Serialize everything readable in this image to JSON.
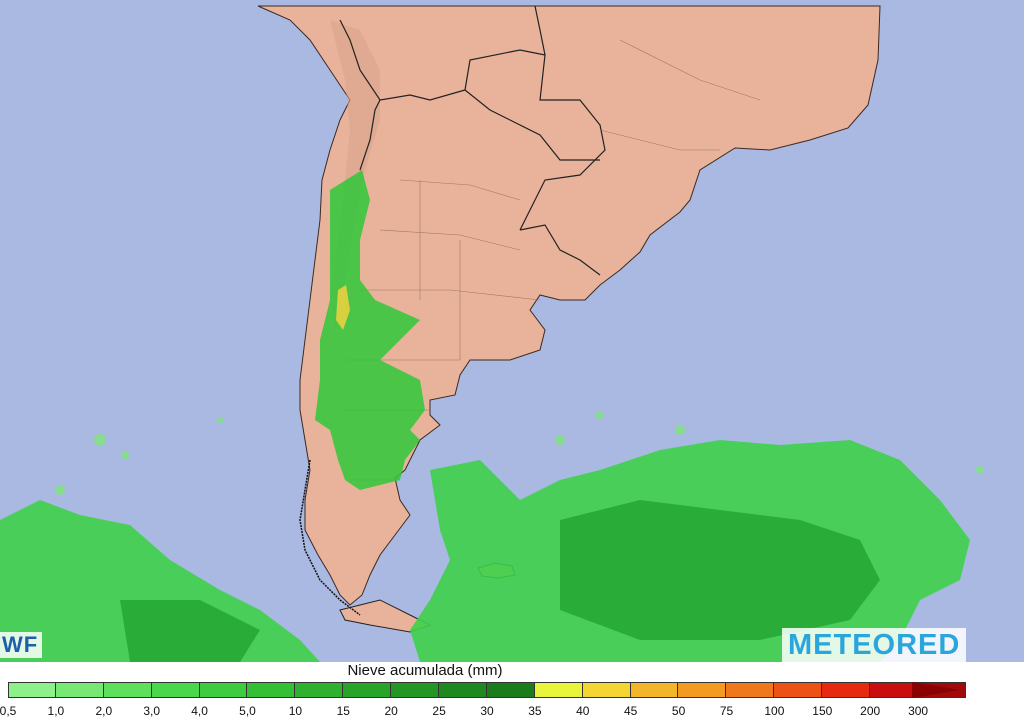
{
  "legend": {
    "title": "Nieve acumulada (mm)",
    "labels": [
      "0,5",
      "1,0",
      "2,0",
      "3,0",
      "4,0",
      "5,0",
      "10",
      "15",
      "20",
      "25",
      "30",
      "35",
      "40",
      "45",
      "50",
      "75",
      "100",
      "150",
      "200",
      "300"
    ],
    "colors": [
      "#8ef08a",
      "#78e874",
      "#5fe05d",
      "#4ad84a",
      "#3dcc3d",
      "#35bf35",
      "#2eb12e",
      "#28a428",
      "#239623",
      "#1e891e",
      "#1a7c1a",
      "#e9f53b",
      "#f4d531",
      "#f3b62a",
      "#f39a23",
      "#f0781c",
      "#ec5216",
      "#e62a10",
      "#c80e0e",
      "#a00a0a"
    ]
  },
  "logos": {
    "left": "WF",
    "right": "METEORED"
  },
  "colors": {
    "ocean": "#a9b9e2",
    "land": "#e8b39a",
    "snow_green": "#2fc83a",
    "brand_blue": "#2aa6dd"
  }
}
